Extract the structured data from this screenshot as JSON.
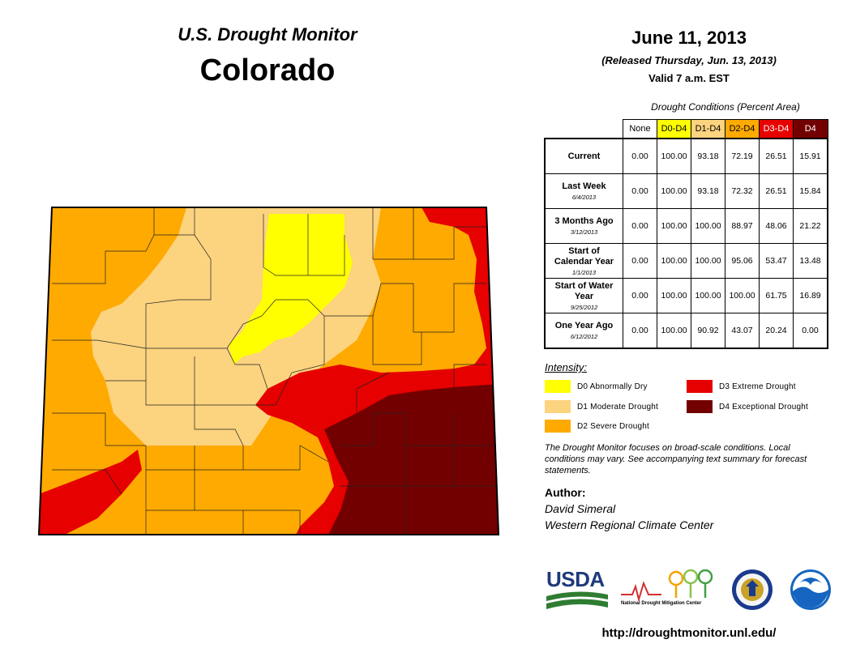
{
  "header": {
    "monitor_title": "U.S. Drought Monitor",
    "state": "Colorado",
    "date": "June 11, 2013",
    "released": "(Released Thursday, Jun. 13, 2013)",
    "valid": "Valid 7 a.m. EST"
  },
  "conditions_table": {
    "caption": "Drought Conditions (Percent Area)",
    "columns": [
      {
        "label": "None",
        "color": "#ffffff",
        "text_color": "#000000"
      },
      {
        "label": "D0-D4",
        "color": "#ffff00",
        "text_color": "#000000"
      },
      {
        "label": "D1-D4",
        "color": "#fcd37f",
        "text_color": "#000000"
      },
      {
        "label": "D2-D4",
        "color": "#ffaa00",
        "text_color": "#000000"
      },
      {
        "label": "D3-D4",
        "color": "#e60000",
        "text_color": "#ffffff"
      },
      {
        "label": "D4",
        "color": "#730000",
        "text_color": "#ffffff"
      }
    ],
    "rows": [
      {
        "label": "Current",
        "sublabel": "",
        "values": [
          "0.00",
          "100.00",
          "93.18",
          "72.19",
          "26.51",
          "15.91"
        ]
      },
      {
        "label": "Last Week",
        "sublabel": "6/4/2013",
        "values": [
          "0.00",
          "100.00",
          "93.18",
          "72.32",
          "26.51",
          "15.84"
        ]
      },
      {
        "label": "3 Months Ago",
        "sublabel": "3/12/2013",
        "values": [
          "0.00",
          "100.00",
          "100.00",
          "88.97",
          "48.06",
          "21.22"
        ]
      },
      {
        "label": "Start of Calendar Year",
        "sublabel": "1/1/2013",
        "values": [
          "0.00",
          "100.00",
          "100.00",
          "95.06",
          "53.47",
          "13.48"
        ]
      },
      {
        "label": "Start of Water Year",
        "sublabel": "9/25/2012",
        "values": [
          "0.00",
          "100.00",
          "100.00",
          "100.00",
          "61.75",
          "16.89"
        ]
      },
      {
        "label": "One Year Ago",
        "sublabel": "6/12/2012",
        "values": [
          "0.00",
          "100.00",
          "90.92",
          "43.07",
          "20.24",
          "0.00"
        ]
      }
    ]
  },
  "legend": {
    "heading": "Intensity:",
    "items": [
      {
        "label": "D0 Abnormally Dry",
        "color": "#ffff00"
      },
      {
        "label": "D1 Moderate Drought",
        "color": "#fcd37f"
      },
      {
        "label": "D2 Severe Drought",
        "color": "#ffaa00"
      },
      {
        "label": "D3 Extreme Drought",
        "color": "#e60000"
      },
      {
        "label": "D4 Exceptional Drought",
        "color": "#730000"
      }
    ]
  },
  "note": "The Drought Monitor focuses on broad-scale conditions. Local conditions may vary. See accompanying text summary for forecast statements.",
  "author": {
    "heading": "Author:",
    "name": "David Simeral",
    "org": "Western Regional Climate Center"
  },
  "logos": {
    "usda": "USDA",
    "ndmc": "National Drought Mitigation Center"
  },
  "url": "http://droughtmonitor.unl.edu/",
  "map": {
    "colors": {
      "D0": "#ffff00",
      "D1": "#fcd37f",
      "D2": "#ffaa00",
      "D3": "#e60000",
      "D4": "#730000"
    }
  }
}
